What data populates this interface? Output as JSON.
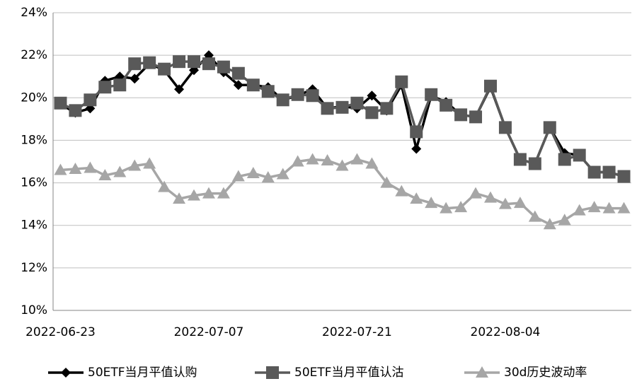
{
  "chart_data": {
    "type": "line",
    "categories": [
      "2022-06-23",
      null,
      null,
      null,
      null,
      null,
      null,
      null,
      null,
      null,
      "2022-07-07",
      null,
      null,
      null,
      null,
      null,
      null,
      null,
      null,
      null,
      "2022-07-21",
      null,
      null,
      null,
      null,
      null,
      null,
      null,
      null,
      null,
      "2022-08-04",
      null,
      null,
      null,
      null,
      null,
      null,
      null,
      null
    ],
    "series": [
      {
        "name": "50ETF当月平值认购",
        "color": "#000000",
        "marker": "diamond",
        "values": [
          19.7,
          19.3,
          19.5,
          20.8,
          21.0,
          20.9,
          21.6,
          21.3,
          20.4,
          21.3,
          22.0,
          21.2,
          20.6,
          20.6,
          20.5,
          19.9,
          20.1,
          20.4,
          19.5,
          19.6,
          19.5,
          20.1,
          19.4,
          20.6,
          17.6,
          20.1,
          19.8,
          19.2,
          19.1,
          20.5,
          18.6,
          17.1,
          16.9,
          18.6,
          17.4,
          17.3,
          16.5,
          16.5,
          16.3
        ]
      },
      {
        "name": "50ETF当月平值认沽",
        "color": "#595959",
        "marker": "square",
        "values": [
          19.75,
          19.4,
          19.9,
          20.5,
          20.6,
          21.6,
          21.65,
          21.35,
          21.7,
          21.7,
          21.6,
          21.45,
          21.15,
          20.6,
          20.3,
          19.9,
          20.15,
          20.1,
          19.5,
          19.55,
          19.75,
          19.3,
          19.5,
          20.75,
          18.4,
          20.15,
          19.65,
          19.2,
          19.1,
          20.55,
          18.6,
          17.1,
          16.9,
          18.6,
          17.1,
          17.3,
          16.5,
          16.5,
          16.3
        ]
      },
      {
        "name": "30d历史波动率",
        "color": "#a6a6a6",
        "marker": "triangle",
        "values": [
          16.6,
          16.65,
          16.7,
          16.35,
          16.5,
          16.8,
          16.9,
          15.8,
          15.25,
          15.4,
          15.5,
          15.5,
          16.3,
          16.45,
          16.25,
          16.4,
          17.0,
          17.1,
          17.05,
          16.8,
          17.1,
          16.9,
          16.0,
          15.6,
          15.25,
          15.05,
          14.8,
          14.85,
          15.5,
          15.3,
          15.0,
          15.05,
          14.4,
          14.05,
          14.25,
          14.7,
          14.85,
          14.8,
          14.8
        ]
      }
    ],
    "ylim": [
      10,
      24
    ],
    "yticks": [
      {
        "value": 10,
        "label": "10%"
      },
      {
        "value": 12,
        "label": "12%"
      },
      {
        "value": 14,
        "label": "14%"
      },
      {
        "value": 16,
        "label": "16%"
      },
      {
        "value": 18,
        "label": "18%"
      },
      {
        "value": 20,
        "label": "20%"
      },
      {
        "value": 22,
        "label": "22%"
      },
      {
        "value": 24,
        "label": "24%"
      }
    ],
    "grid": true,
    "legend": "bottom"
  }
}
